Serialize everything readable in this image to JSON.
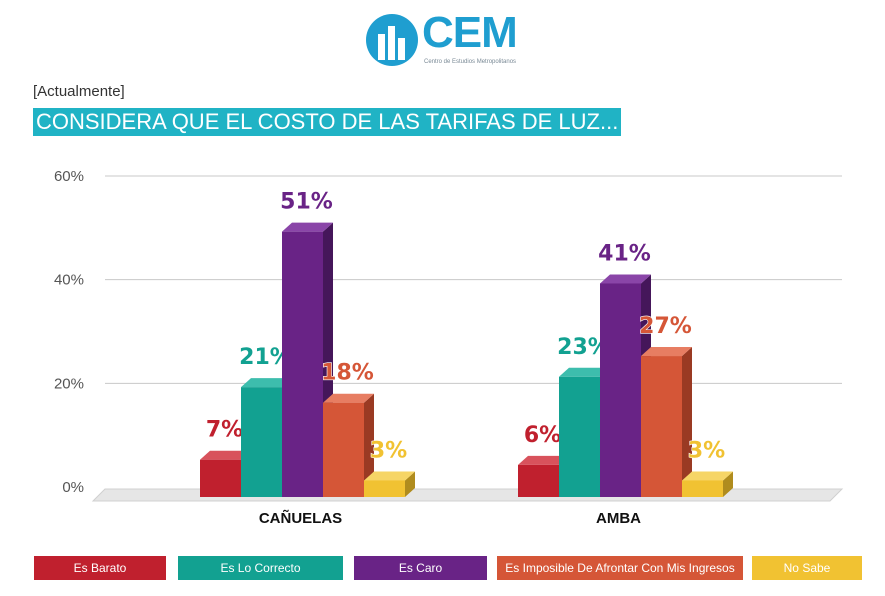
{
  "header": {
    "logo_text": "CEM",
    "logo_tagline": "Centro de Estudios Metropolitanos",
    "subtitle": "[Actualmente]",
    "title": "CONSIDERA QUE EL COSTO DE LAS TARIFAS DE LUZ..."
  },
  "colors": {
    "title_bg": "#20b3c5",
    "logo": "#1f9ed0"
  },
  "chart_data": {
    "type": "bar",
    "title": "CONSIDERA QUE EL COSTO DE LAS TARIFAS DE LUZ...",
    "subtitle": "[Actualmente]",
    "xlabel": "",
    "ylabel": "",
    "categories": [
      "CAÑUELAS",
      "AMBA"
    ],
    "y_ticks": [
      "0%",
      "20%",
      "40%",
      "60%"
    ],
    "ylim": [
      0,
      60
    ],
    "grid": true,
    "legend_position": "bottom",
    "series": [
      {
        "name": "Es Barato",
        "values": [
          7,
          6
        ],
        "labels": [
          "7%",
          "6%"
        ],
        "color": "#c0202e",
        "side_color": "#8a1520",
        "top_color": "#d8525c"
      },
      {
        "name": "Es Lo Correcto",
        "values": [
          21,
          23
        ],
        "labels": [
          "21%",
          "23%"
        ],
        "color": "#12a191",
        "side_color": "#0b6e63",
        "top_color": "#3dbdad"
      },
      {
        "name": "Es Caro",
        "values": [
          51,
          41
        ],
        "labels": [
          "51%",
          "41%"
        ],
        "color": "#692386",
        "side_color": "#45165a",
        "top_color": "#8a45a8"
      },
      {
        "name": "Es Imposible De Afrontar Con Mis Ingresos",
        "values": [
          18,
          27
        ],
        "labels": [
          "18%",
          "27%"
        ],
        "color": "#d55637",
        "side_color": "#9a3a23",
        "top_color": "#e77d62"
      },
      {
        "name": "No Sabe",
        "values": [
          3,
          3
        ],
        "labels": [
          "3%",
          "3%"
        ],
        "color": "#f1c232",
        "side_color": "#b08c1e",
        "top_color": "#f6d566"
      }
    ]
  }
}
